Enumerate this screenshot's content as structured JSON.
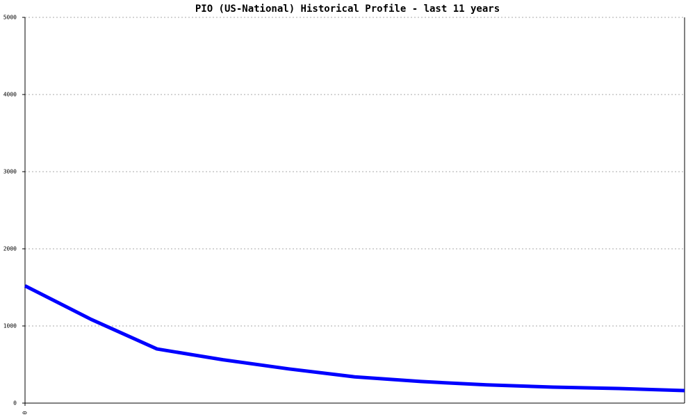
{
  "chart_data": {
    "type": "line",
    "title": "PIO (US-National) Historical Profile - last 11 years",
    "x": [
      0,
      1,
      2,
      3,
      4,
      5,
      6,
      7,
      8,
      9,
      10
    ],
    "xlim": [
      0,
      10
    ],
    "xticks": [
      0
    ],
    "series": [
      {
        "color": "#0000ff",
        "values": [
          1520,
          1086,
          702,
          562,
          443,
          340,
          280,
          236,
          207,
          189,
          162
        ]
      }
    ],
    "ylim": [
      0,
      5000
    ],
    "yticks": [
      0,
      1000,
      2000,
      3000,
      4000,
      5000
    ],
    "grid": true
  }
}
